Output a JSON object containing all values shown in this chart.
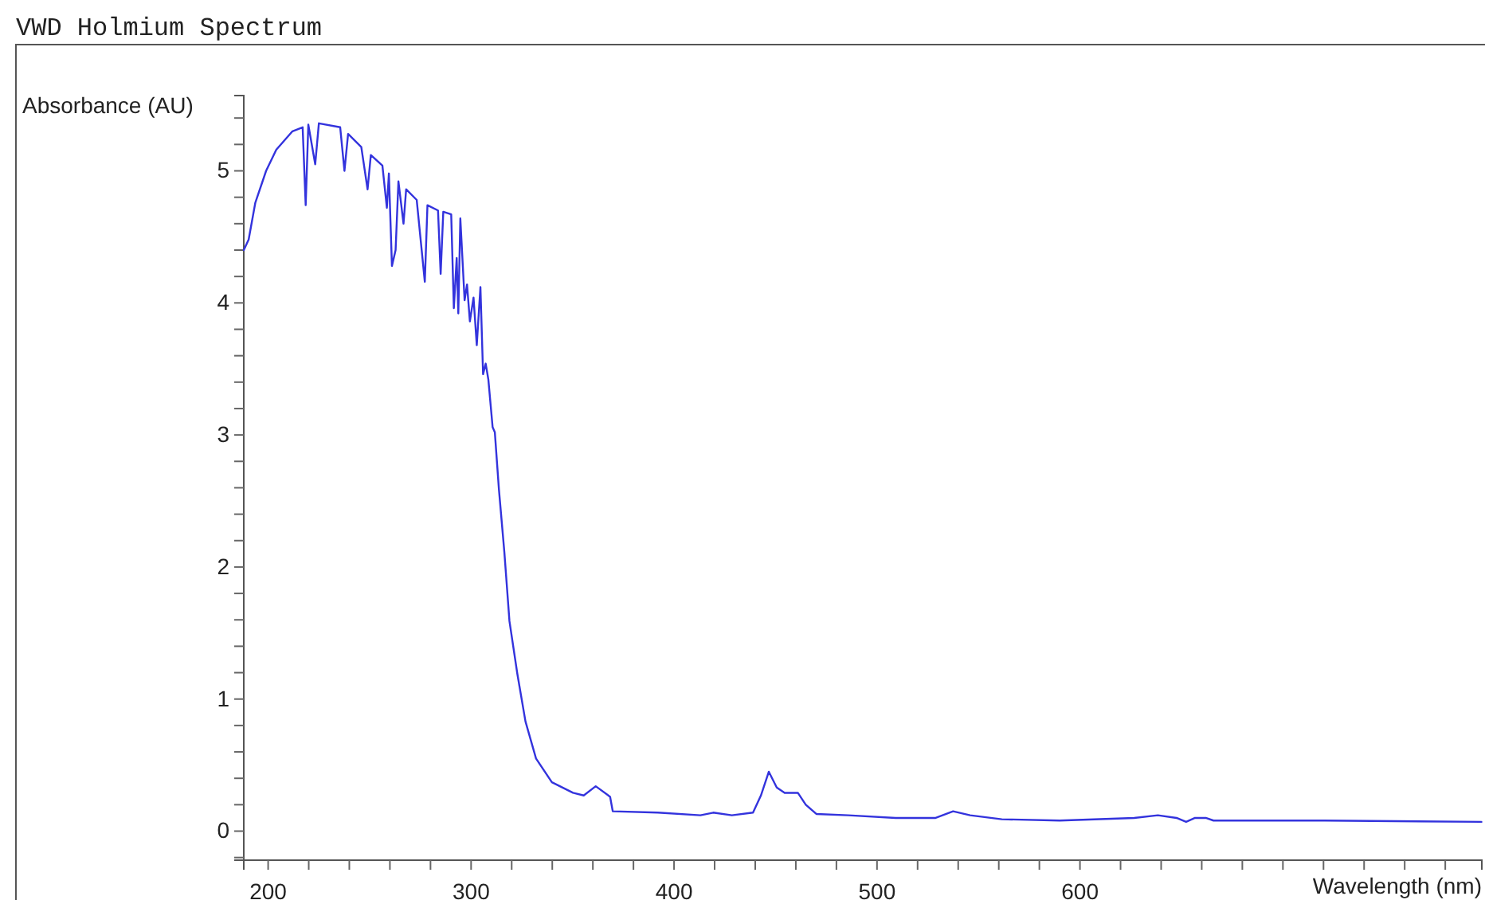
{
  "chart_data": {
    "type": "line",
    "title": "VWD Holmium Spectrum",
    "xlabel": "Wavelength (nm)",
    "ylabel": "Absorbance (AU)",
    "xlim": [
      188,
      798
    ],
    "ylim": [
      -0.22,
      5.57
    ],
    "xticks": [
      200,
      {
        "value": 220,
        "label": null
      },
      {
        "value": 240,
        "label": null
      },
      {
        "value": 260,
        "label": null
      },
      {
        "value": 280,
        "label": null
      },
      300,
      {
        "value": 320,
        "label": null
      },
      {
        "value": 340,
        "label": null
      },
      {
        "value": 360,
        "label": null
      },
      {
        "value": 380,
        "label": null
      },
      400,
      {
        "value": 420,
        "label": null
      },
      {
        "value": 440,
        "label": null
      },
      {
        "value": 460,
        "label": null
      },
      {
        "value": 480,
        "label": null
      },
      500,
      {
        "value": 520,
        "label": null
      },
      {
        "value": 540,
        "label": null
      },
      {
        "value": 560,
        "label": null
      },
      {
        "value": 580,
        "label": null
      },
      600,
      {
        "value": 620,
        "label": null
      },
      {
        "value": 640,
        "label": null
      },
      {
        "value": 660,
        "label": null
      },
      {
        "value": 680,
        "label": null
      },
      {
        "value": 700,
        "label": null
      },
      {
        "value": 720,
        "label": null
      },
      {
        "value": 740,
        "label": null
      },
      {
        "value": 760,
        "label": null
      },
      {
        "value": 780,
        "label": null
      }
    ],
    "yticks": [
      {
        "value": -0.2,
        "label": null
      },
      0,
      {
        "value": 0.2,
        "label": null
      },
      {
        "value": 0.4,
        "label": null
      },
      {
        "value": 0.6,
        "label": null
      },
      {
        "value": 0.8,
        "label": null
      },
      1,
      {
        "value": 1.2,
        "label": null
      },
      {
        "value": 1.4,
        "label": null
      },
      {
        "value": 1.6,
        "label": null
      },
      {
        "value": 1.8,
        "label": null
      },
      2,
      {
        "value": 2.2,
        "label": null
      },
      {
        "value": 2.4,
        "label": null
      },
      {
        "value": 2.6,
        "label": null
      },
      {
        "value": 2.8,
        "label": null
      },
      3,
      {
        "value": 3.2,
        "label": null
      },
      {
        "value": 3.4,
        "label": null
      },
      {
        "value": 3.6,
        "label": null
      },
      {
        "value": 3.8,
        "label": null
      },
      4,
      {
        "value": 4.2,
        "label": null
      },
      {
        "value": 4.4,
        "label": null
      },
      {
        "value": 4.6,
        "label": null
      },
      {
        "value": 4.8,
        "label": null
      },
      5,
      {
        "value": 5.2,
        "label": null
      },
      {
        "value": 5.4,
        "label": null
      }
    ],
    "grid": false,
    "marker": "none",
    "line_style": "solid",
    "series": [
      {
        "color": "#3333dd",
        "x": [
          188,
          190.4,
          193.7,
          199,
          204,
          212,
          217,
          218.5,
          219.8,
          223.2,
          225,
          235.5,
          237.6,
          239.4,
          245.9,
          249,
          250.6,
          256.3,
          258.5,
          259.5,
          261,
          262.8,
          264.2,
          266.7,
          268,
          273.2,
          277.2,
          278.5,
          283.7,
          285,
          286.3,
          290.2,
          291.5,
          292.9,
          293.7,
          294.7,
          296.8,
          298,
          299.4,
          301.2,
          302.8,
          304.6,
          305.9,
          307.2,
          308.5,
          310.6,
          311.7,
          313.7,
          316.4,
          318.9,
          322.8,
          326.8,
          332,
          339.8,
          350.2,
          355.5,
          361.4,
          368.5,
          369.8,
          392,
          413,
          419.3,
          428.5,
          438.9,
          442.8,
          446.7,
          450.6,
          454.5,
          461,
          464.9,
          470.1,
          485.8,
          509.2,
          528.9,
          537.5,
          545.9,
          561.5,
          590,
          626.7,
          638.4,
          647.6,
          652.3,
          656.7,
          662,
          665.8,
          720.6,
          797.8
        ],
        "values": [
          4.4,
          4.48,
          4.76,
          5.0,
          5.16,
          5.3,
          5.33,
          4.74,
          5.35,
          5.05,
          5.36,
          5.33,
          5.0,
          5.28,
          5.18,
          4.86,
          5.12,
          5.04,
          4.72,
          4.98,
          4.28,
          4.4,
          4.92,
          4.6,
          4.86,
          4.78,
          4.16,
          4.74,
          4.7,
          4.22,
          4.69,
          4.67,
          3.96,
          4.34,
          3.92,
          4.64,
          4.02,
          4.14,
          3.86,
          4.04,
          3.68,
          4.12,
          3.46,
          3.54,
          3.42,
          3.06,
          3.02,
          2.59,
          2.11,
          1.59,
          1.19,
          0.83,
          0.55,
          0.37,
          0.29,
          0.27,
          0.34,
          0.26,
          0.15,
          0.14,
          0.12,
          0.14,
          0.12,
          0.14,
          0.27,
          0.45,
          0.33,
          0.29,
          0.29,
          0.2,
          0.13,
          0.12,
          0.1,
          0.1,
          0.15,
          0.12,
          0.09,
          0.08,
          0.1,
          0.12,
          0.1,
          0.07,
          0.1,
          0.1,
          0.08,
          0.08,
          0.07
        ]
      }
    ]
  }
}
